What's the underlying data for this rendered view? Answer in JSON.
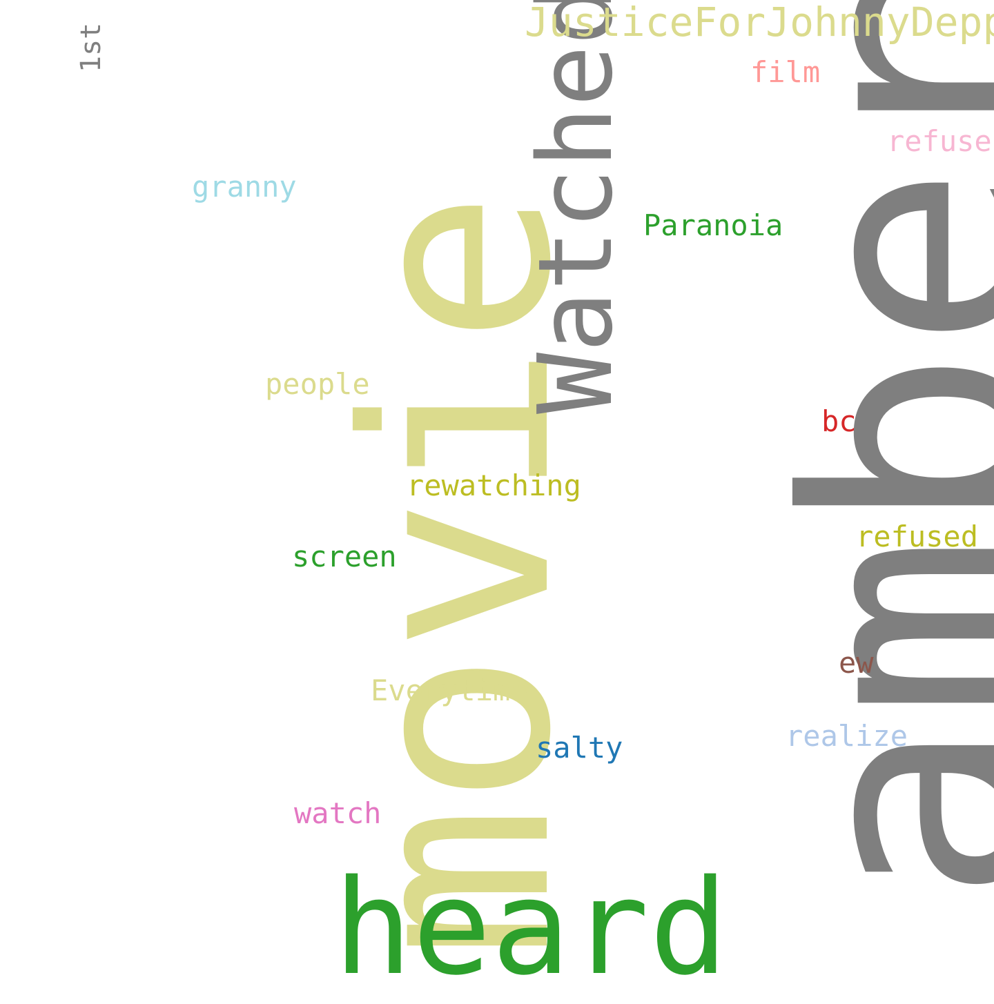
{
  "words": {
    "movie": {
      "text": "movie",
      "color": "#dbdb8d"
    },
    "amber": {
      "text": "amber",
      "color": "#7f7f7f"
    },
    "heard": {
      "text": "heard",
      "color": "#2ca02c"
    },
    "watched": {
      "text": "Watched",
      "color": "#7f7f7f"
    },
    "justice": {
      "text": "JusticeForJohnnyDepp",
      "color": "#dbdb8d"
    },
    "first": {
      "text": "1st",
      "color": "#7f7f7f"
    },
    "film": {
      "text": "film",
      "color": "#ff9896"
    },
    "refuse": {
      "text": "refuse",
      "color": "#f7b6d2"
    },
    "granny": {
      "text": "granny",
      "color": "#9edae5"
    },
    "paranoia": {
      "text": "Paranoia",
      "color": "#2ca02c"
    },
    "people": {
      "text": "people",
      "color": "#dbdb8d"
    },
    "bc": {
      "text": "bc",
      "color": "#d62728"
    },
    "rewatching": {
      "text": "rewatching",
      "color": "#bcbd22"
    },
    "refused": {
      "text": "refused",
      "color": "#bcbd22"
    },
    "screen": {
      "text": "screen",
      "color": "#2ca02c"
    },
    "ew": {
      "text": "ew",
      "color": "#8c564b"
    },
    "everytime": {
      "text": "Everytime",
      "color": "#dbdb8d"
    },
    "realize": {
      "text": "realize",
      "color": "#aec7e8"
    },
    "salty": {
      "text": "salty",
      "color": "#1f77b4"
    },
    "watch": {
      "text": "watch",
      "color": "#e377c2"
    }
  }
}
